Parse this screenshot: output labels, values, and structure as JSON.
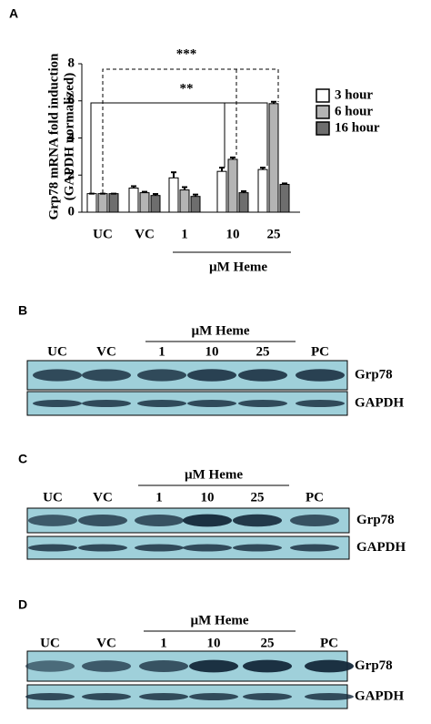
{
  "chart_data": {
    "type": "bar",
    "panel_label": "A",
    "ylabel": [
      "Grp78 mRNA fold induction",
      "(GAPDH normalized)"
    ],
    "categories": [
      "UC",
      "VC",
      "1",
      "10",
      "25"
    ],
    "group_label": "µM Heme",
    "series": [
      {
        "name": "3 hour",
        "color": "#ffffff",
        "values": [
          1,
          1.3,
          1.85,
          2.2,
          2.3
        ],
        "errors": [
          0,
          0.1,
          0.3,
          0.2,
          0.1
        ]
      },
      {
        "name": "6 hour",
        "color": "#b4b4b4",
        "values": [
          1,
          1.05,
          1.2,
          2.85,
          5.85
        ],
        "errors": [
          0,
          0.05,
          0.15,
          0.1,
          0.1
        ]
      },
      {
        "name": "16 hour",
        "color": "#6e6e6e",
        "values": [
          1,
          0.9,
          0.85,
          1.05,
          1.5
        ],
        "errors": [
          0,
          0.08,
          0.1,
          0.08,
          0.05
        ]
      }
    ],
    "ylim": [
      0,
      8
    ],
    "yticks": [
      0,
      2,
      4,
      6,
      8
    ],
    "annotations": [
      "***",
      "**"
    ],
    "legend": "right"
  },
  "blots": [
    {
      "label": "B",
      "header": "µM Heme",
      "lanes": [
        "UC",
        "VC",
        "1",
        "10",
        "25",
        "PC"
      ],
      "rows": [
        "Grp78",
        "GAPDH"
      ]
    },
    {
      "label": "C",
      "header": "µM Heme",
      "lanes": [
        "UC",
        "VC",
        "1",
        "10",
        "25",
        "PC"
      ],
      "rows": [
        "Grp78",
        "GAPDH"
      ]
    },
    {
      "label": "D",
      "header": "µM Heme",
      "lanes": [
        "UC",
        "VC",
        "1",
        "10",
        "25",
        "PC"
      ],
      "rows": [
        "Grp78",
        "GAPDH"
      ]
    }
  ]
}
